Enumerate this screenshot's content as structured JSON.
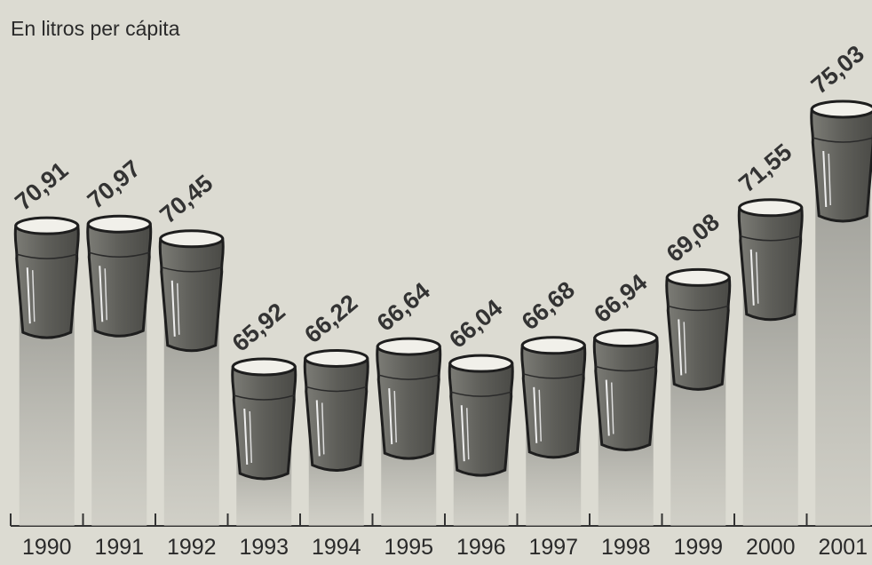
{
  "chart_data": {
    "type": "pictogram-bar",
    "subtitle": "En litros per cápita",
    "categories": [
      "1990",
      "1991",
      "1992",
      "1993",
      "1994",
      "1995",
      "1996",
      "1997",
      "1998",
      "1999",
      "2000",
      "2001"
    ],
    "values": [
      70.91,
      70.97,
      70.45,
      65.92,
      66.22,
      66.64,
      66.04,
      66.68,
      66.94,
      69.08,
      71.55,
      75.03
    ],
    "value_labels": [
      "70,91",
      "70,97",
      "70,45",
      "65,92",
      "66,22",
      "66,64",
      "66,04",
      "66,68",
      "66,94",
      "69,08",
      "71,55",
      "75,03"
    ],
    "color": "#6b6b66"
  }
}
